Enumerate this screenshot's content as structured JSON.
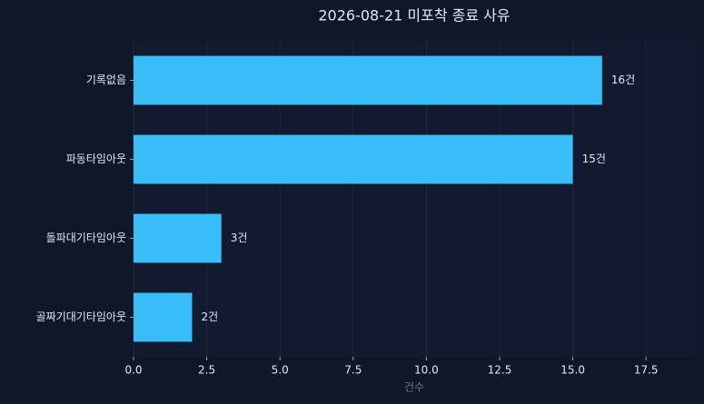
{
  "chart_data": {
    "type": "barh",
    "title": "2026-08-21 미포착 종료 사유",
    "categories": [
      "기록없음",
      "파동타임아웃",
      "돌파대기타임아웃",
      "골짜기대기타임아웃"
    ],
    "values": [
      16,
      15,
      3,
      2
    ],
    "value_labels": [
      "16건",
      "15건",
      "3건",
      "2건"
    ],
    "color": "#38bdf8",
    "xlabel": "건수",
    "xlim": [
      0,
      19.2
    ],
    "xticks": [
      {
        "value": 0,
        "label": "0.0"
      },
      {
        "value": 2.5,
        "label": "2.5"
      },
      {
        "value": 5,
        "label": "5.0"
      },
      {
        "value": 7.5,
        "label": "7.5"
      },
      {
        "value": 10,
        "label": "10.0"
      },
      {
        "value": 12.5,
        "label": "12.5"
      },
      {
        "value": 15,
        "label": "15.0"
      },
      {
        "value": 17.5,
        "label": "17.5"
      }
    ],
    "grid": true
  }
}
